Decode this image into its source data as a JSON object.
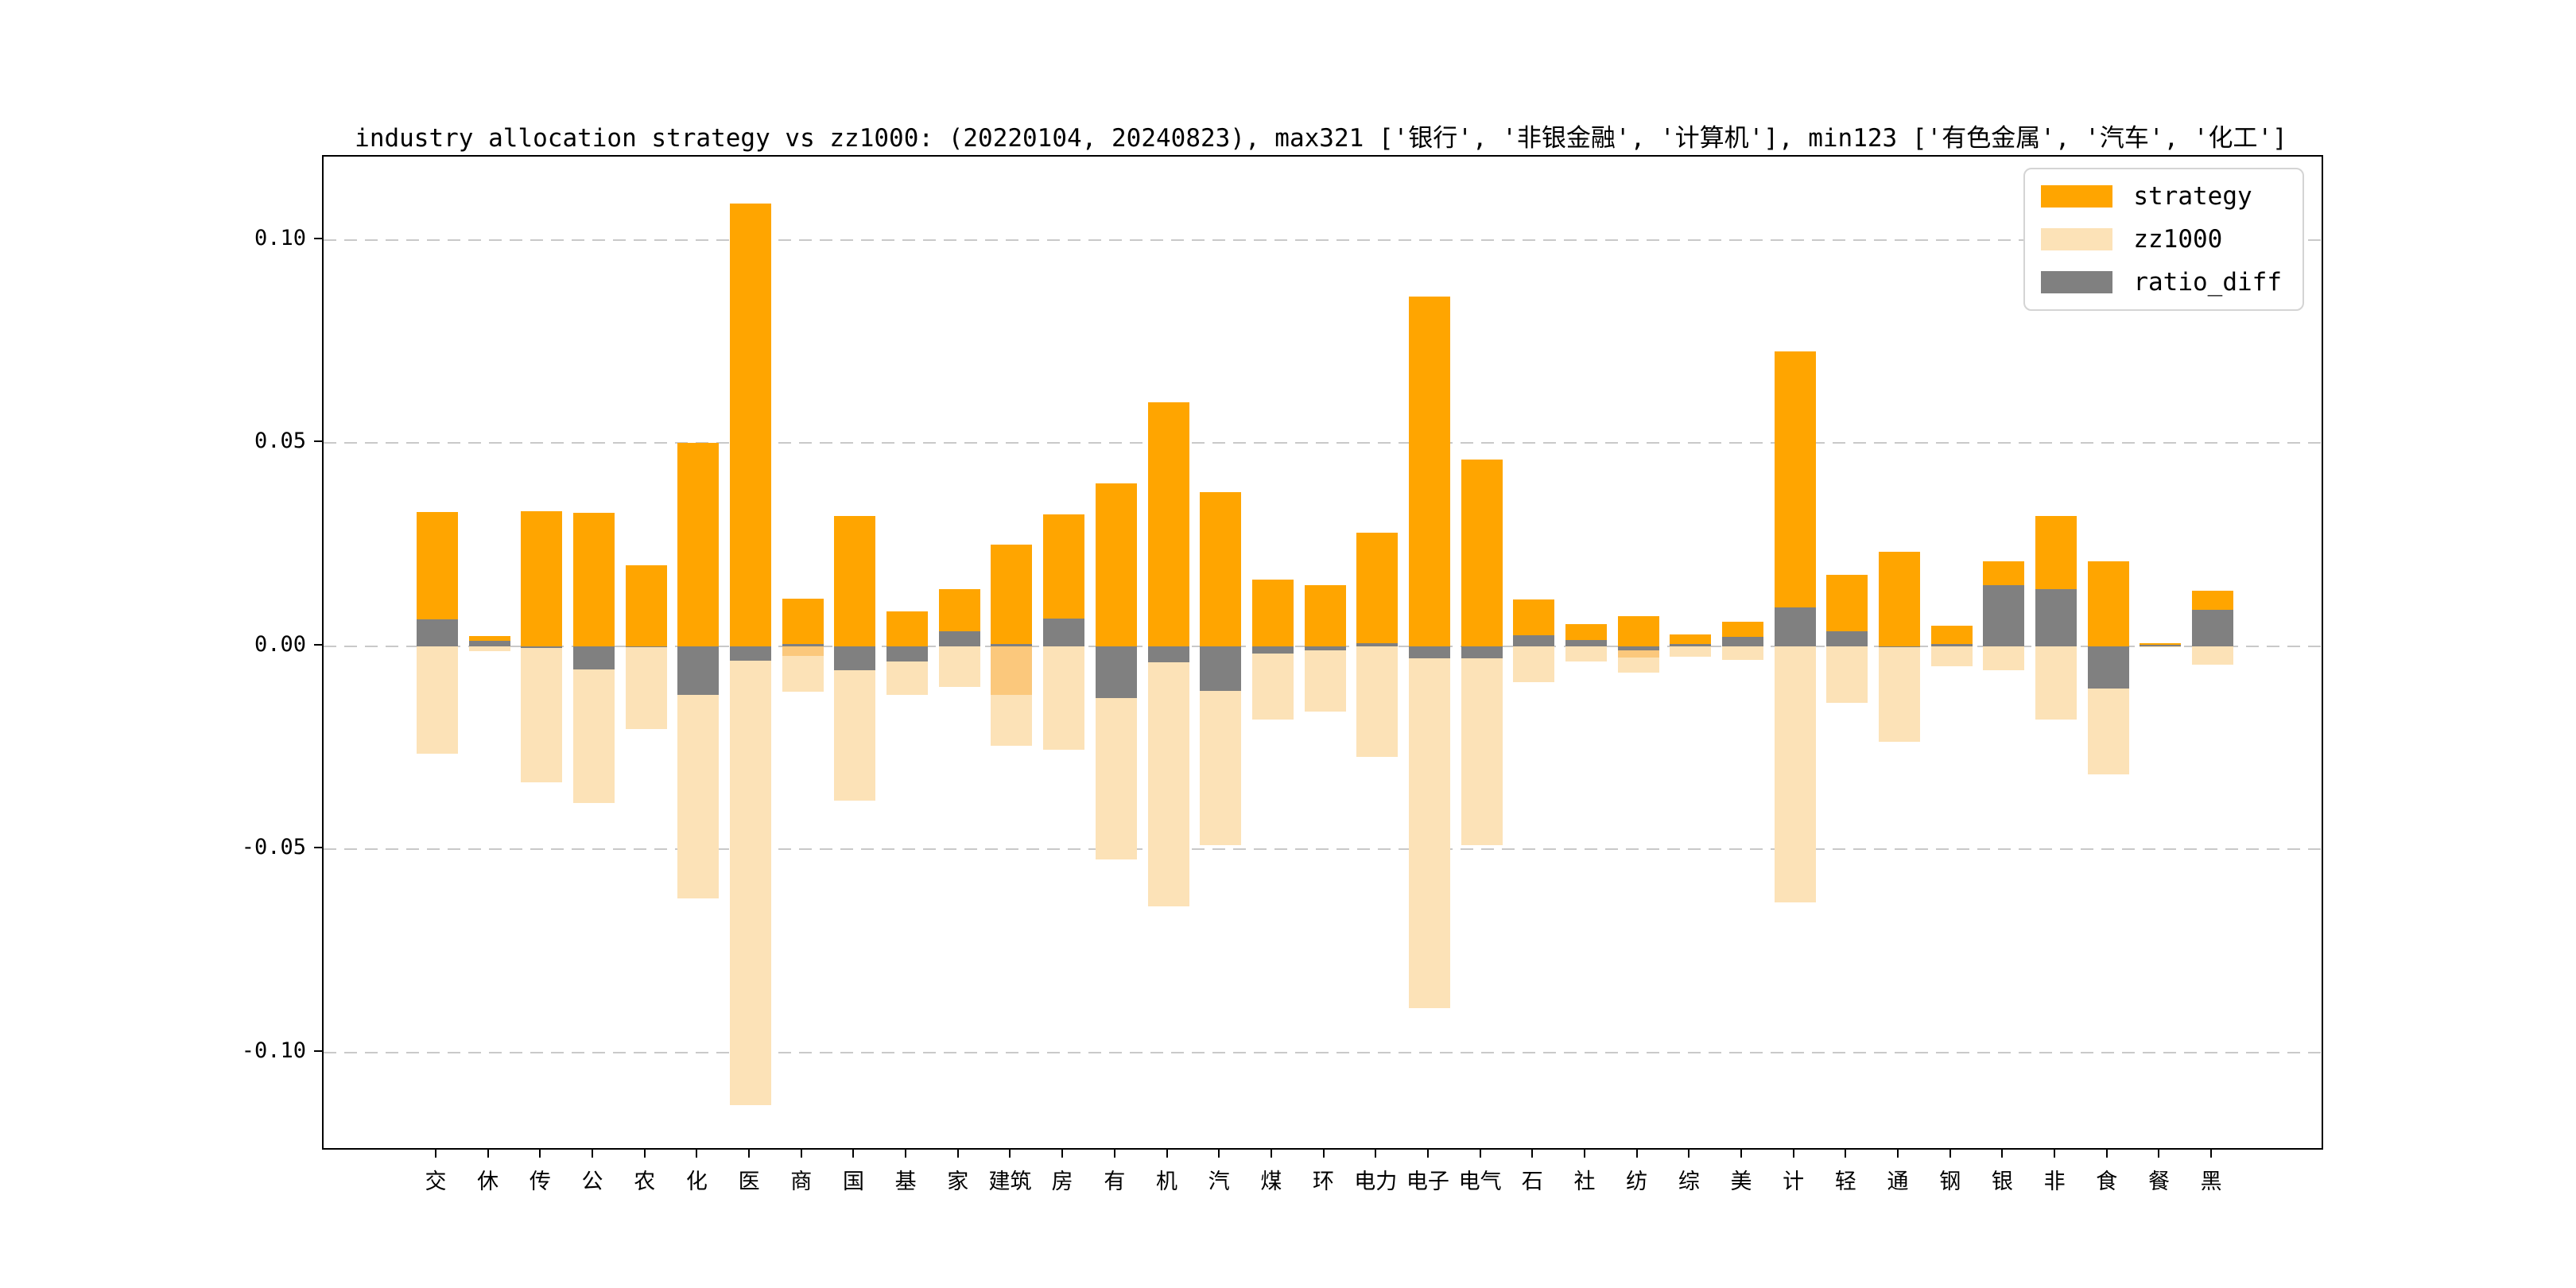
{
  "page": {
    "background": "#ffffff"
  },
  "chart_data": {
    "type": "bar",
    "title": "industry allocation strategy vs zz1000: (20220104, 20240823), max321 ['银行', '非银金融', '计算机'], min123 ['有色金属', '汽车', '化工']",
    "categories": [
      "交",
      "休",
      "传",
      "公",
      "农",
      "化",
      "医",
      "商",
      "国",
      "基",
      "家",
      "建筑",
      "房",
      "有",
      "机",
      "汽",
      "煤",
      "环",
      "电力",
      "电子",
      "电气",
      "石",
      "社",
      "纺",
      "综",
      "美",
      "计",
      "轻",
      "通",
      "钢",
      "银",
      "非",
      "食",
      "餐",
      "黑"
    ],
    "series": [
      {
        "name": "strategy",
        "color": "#FFA500",
        "values": [
          0.033,
          0.0025,
          0.0333,
          0.0328,
          0.02,
          0.05,
          0.109,
          0.0117,
          0.032,
          0.0085,
          0.014,
          0.025,
          0.0325,
          0.04,
          0.06,
          0.038,
          0.0165,
          0.015,
          0.028,
          0.086,
          0.046,
          0.0115,
          0.0054,
          0.0075,
          0.003,
          0.006,
          0.0725,
          0.0176,
          0.0232,
          0.005,
          0.021,
          0.032,
          0.021,
          0.0008,
          0.0136
        ]
      },
      {
        "name": "zz1000",
        "color": "#FCE2B7",
        "values": [
          -0.0265,
          -0.0012,
          -0.0335,
          -0.0385,
          -0.0203,
          -0.062,
          -0.113,
          -0.0111,
          -0.038,
          -0.012,
          -0.01,
          -0.0245,
          -0.0255,
          -0.0525,
          -0.064,
          -0.049,
          -0.018,
          -0.016,
          -0.0272,
          -0.089,
          -0.049,
          -0.0088,
          -0.0038,
          -0.0065,
          -0.0026,
          -0.0034,
          -0.063,
          -0.014,
          -0.0235,
          -0.005,
          -0.006,
          -0.018,
          -0.0315,
          -0.0003,
          -0.0045
        ]
      },
      {
        "name": "ratio_diff",
        "color": "#808080",
        "values": [
          0.0066,
          0.0013,
          -0.0005,
          -0.0057,
          -0.0003,
          -0.012,
          -0.0035,
          0.0006,
          -0.006,
          -0.0037,
          0.0037,
          0.0005,
          0.0068,
          -0.0128,
          -0.004,
          -0.011,
          -0.0018,
          -0.0011,
          0.0008,
          -0.003,
          -0.003,
          0.0027,
          0.0016,
          -0.001,
          0.0005,
          0.0024,
          0.0095,
          0.0037,
          -0.0003,
          0.0005,
          0.015,
          0.014,
          -0.0105,
          0.0003,
          0.009
        ]
      }
    ],
    "overlap_band": {
      "color": "#FBC87C",
      "note": "darker warm band visible just below zero on some bars",
      "values": [
        0,
        0,
        0,
        0,
        0,
        0,
        0,
        0.0024,
        0,
        0,
        0,
        0.012,
        0,
        0,
        0,
        0,
        0,
        0,
        0,
        0,
        0,
        0,
        0,
        0.0028,
        0,
        0,
        0,
        0,
        0,
        0,
        0,
        0,
        0,
        0,
        0
      ]
    },
    "yticks": [
      0.1,
      0.05,
      0.0,
      -0.05,
      -0.1
    ],
    "ytick_labels": [
      "0.10",
      "0.05",
      "0.00",
      "-0.05",
      "-0.10"
    ],
    "ylim": [
      -0.1235,
      0.1205
    ],
    "xlabel": "",
    "ylabel": "",
    "grid": "dashed-horizontal",
    "legend": {
      "position": "upper-right",
      "entries": [
        "strategy",
        "zz1000",
        "ratio_diff"
      ]
    }
  }
}
